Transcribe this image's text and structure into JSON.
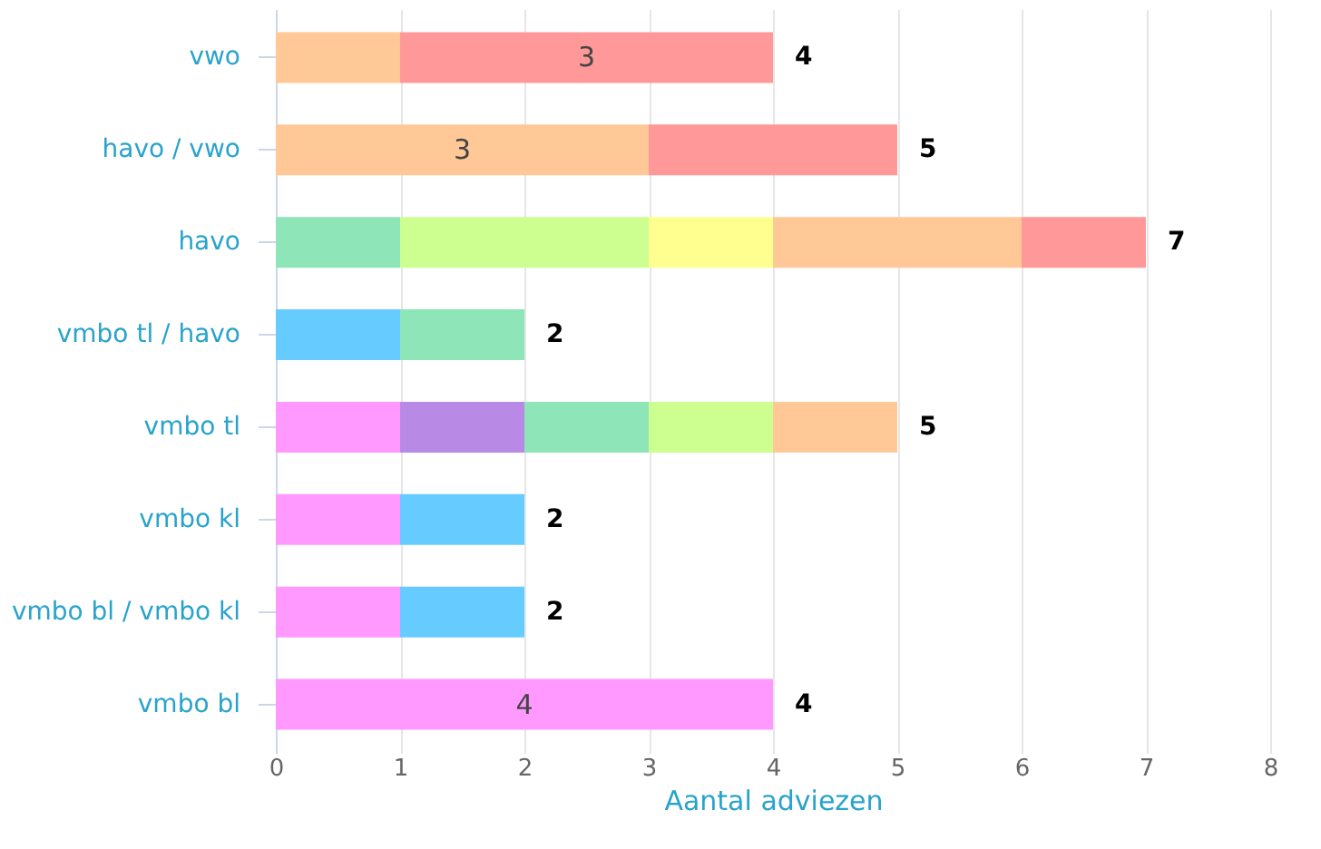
{
  "chart_data": {
    "type": "bar",
    "orientation": "horizontal",
    "stacked": true,
    "xlabel": "Aantal adviezen",
    "categories": [
      "vwo",
      "havo / vwo",
      "havo",
      "vmbo tl / havo",
      "vmbo tl",
      "vmbo kl",
      "vmbo bl / vmbo kl",
      "vmbo bl"
    ],
    "series": [
      {
        "color": "#ff99ff",
        "values": [
          null,
          null,
          null,
          null,
          1,
          1,
          1,
          4
        ],
        "value_labels": [
          null,
          null,
          null,
          null,
          null,
          null,
          null,
          "4"
        ]
      },
      {
        "color": "#b88ae6",
        "values": [
          null,
          null,
          null,
          null,
          1,
          null,
          null,
          null
        ]
      },
      {
        "color": "#66ccff",
        "values": [
          null,
          null,
          null,
          1,
          null,
          1,
          1,
          null
        ]
      },
      {
        "color": "#8ee6b8",
        "values": [
          null,
          null,
          1,
          1,
          1,
          null,
          null,
          null
        ]
      },
      {
        "color": "#ccff8f",
        "values": [
          null,
          null,
          2,
          null,
          1,
          null,
          null,
          null
        ]
      },
      {
        "color": "#ffff8f",
        "values": [
          null,
          null,
          1,
          null,
          null,
          null,
          null,
          null
        ]
      },
      {
        "color": "#ffc896",
        "values": [
          1,
          3,
          2,
          null,
          1,
          null,
          null,
          null
        ],
        "value_labels": [
          null,
          "3",
          null,
          null,
          null,
          null,
          null,
          null
        ]
      },
      {
        "color": "#ff9999",
        "values": [
          3,
          2,
          1,
          null,
          null,
          null,
          null,
          null
        ],
        "value_labels": [
          "3",
          null,
          null,
          null,
          null,
          null,
          null,
          null
        ]
      }
    ],
    "totals": [
      "4",
      "5",
      "7",
      "2",
      "5",
      "2",
      "2",
      "4"
    ],
    "xlim": [
      0,
      8
    ],
    "xticks": [
      0,
      1,
      2,
      3,
      4,
      5,
      6,
      7,
      8
    ],
    "grid": "x",
    "legend": false
  }
}
